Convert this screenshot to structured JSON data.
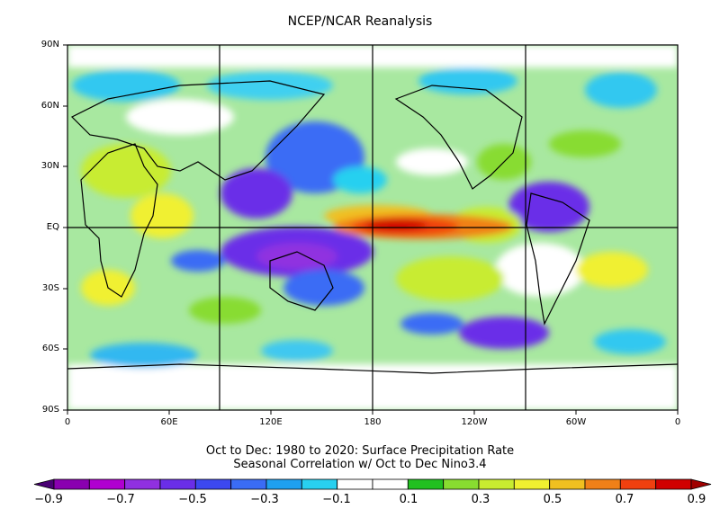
{
  "title": "NCEP/NCAR Reanalysis",
  "lat_labels": [
    "90N",
    "60N",
    "30N",
    "EQ",
    "30S",
    "60S",
    "90S"
  ],
  "lon_labels": [
    "0",
    "60E",
    "120E",
    "180",
    "120W",
    "60W",
    "0"
  ],
  "caption_line1": "Oct to Dec: 1980 to 2020: Surface Precipitation Rate",
  "caption_line2": "Seasonal Correlation w/ Oct to Dec Nino3.4",
  "colorbar": {
    "labels": [
      "−0.9",
      "−0.7",
      "−0.5",
      "−0.3",
      "−0.1",
      "0.1",
      "0.3",
      "0.5",
      "0.7",
      "0.9"
    ],
    "colors": [
      "#4a0074",
      "#8a00b0",
      "#b000d0",
      "#9030e0",
      "#6a2ee8",
      "#3c48f0",
      "#3a6cf5",
      "#1ea0f0",
      "#28d0f0",
      "#ffffff",
      "#ffffff",
      "#22c020",
      "#88dc30",
      "#c8ec30",
      "#f0f030",
      "#f0c020",
      "#f08018",
      "#f04010",
      "#d00000",
      "#a00000"
    ]
  }
}
